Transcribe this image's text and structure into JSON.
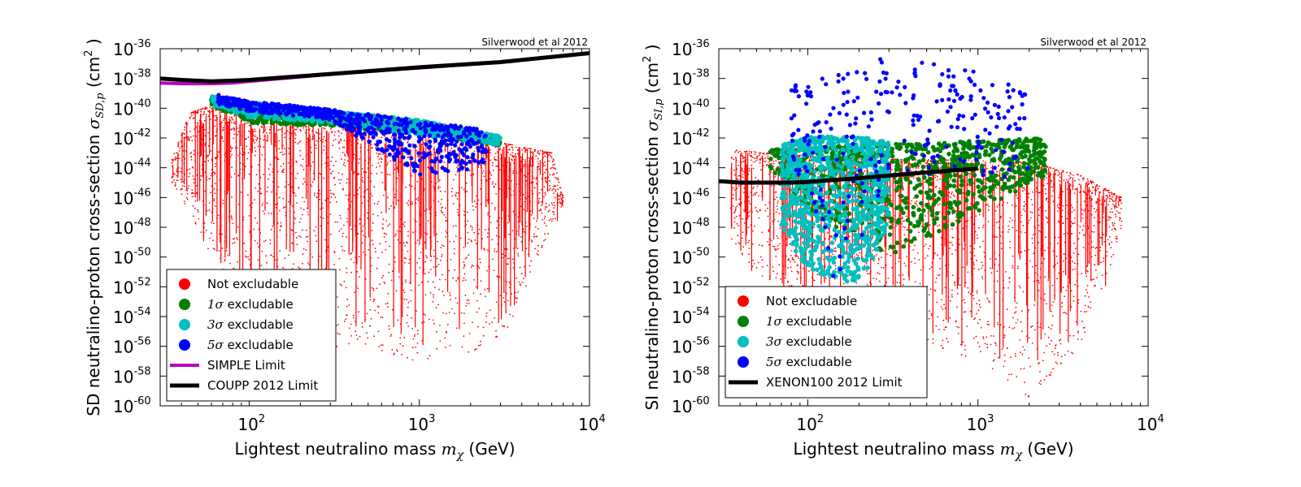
{
  "chart_data": [
    {
      "type": "scatter",
      "panel": "left",
      "credit": "Silverwood et al 2012",
      "xlabel_prefix": "Lightest neutralino mass ",
      "xlabel_symbol": "m",
      "xlabel_sub": "χ",
      "xlabel_suffix": " (GeV)",
      "ylabel_prefix": "SD neutralino-proton cross-section ",
      "ylabel_symbol": "σ",
      "ylabel_sub": "SD,p",
      "ylabel_units": " (cm",
      "ylabel_units_exp": "2",
      "ylabel_units_end": " )",
      "x_scale": "log",
      "y_scale": "log",
      "xlim": [
        30,
        10000
      ],
      "ylim": [
        1e-60,
        1e-36
      ],
      "x_ticks": [
        {
          "base": "10",
          "exp": "2",
          "value": 100
        },
        {
          "base": "10",
          "exp": "3",
          "value": 1000
        },
        {
          "base": "10",
          "exp": "4",
          "value": 10000
        }
      ],
      "y_ticks": [
        {
          "base": "10",
          "exp": "-36",
          "value": -36
        },
        {
          "base": "10",
          "exp": "-38",
          "value": -38
        },
        {
          "base": "10",
          "exp": "-40",
          "value": -40
        },
        {
          "base": "10",
          "exp": "-42",
          "value": -42
        },
        {
          "base": "10",
          "exp": "-44",
          "value": -44
        },
        {
          "base": "10",
          "exp": "-46",
          "value": -46
        },
        {
          "base": "10",
          "exp": "-48",
          "value": -48
        },
        {
          "base": "10",
          "exp": "-50",
          "value": -50
        },
        {
          "base": "10",
          "exp": "-52",
          "value": -52
        },
        {
          "base": "10",
          "exp": "-54",
          "value": -54
        },
        {
          "base": "10",
          "exp": "-56",
          "value": -56
        },
        {
          "base": "10",
          "exp": "-58",
          "value": -58
        },
        {
          "base": "10",
          "exp": "-60",
          "value": -60
        }
      ],
      "legend_position": "lower-left",
      "legend": [
        {
          "label": "Not excludable",
          "sigma": "",
          "kind": "marker",
          "color": "#ff0000"
        },
        {
          "label": " excludable",
          "sigma": "1σ",
          "kind": "marker",
          "color": "#008000"
        },
        {
          "label": " excludable",
          "sigma": "3σ",
          "kind": "marker",
          "color": "#00bfbf"
        },
        {
          "label": " excludable",
          "sigma": "5σ",
          "kind": "marker",
          "color": "#0000ff"
        },
        {
          "label": "SIMPLE Limit",
          "sigma": "",
          "kind": "line",
          "color": "#bf00bf"
        },
        {
          "label": "COUPP 2012 Limit",
          "sigma": "",
          "kind": "line",
          "color": "#000000"
        }
      ],
      "series": [
        {
          "name": "SIMPLE Limit",
          "kind": "line",
          "color": "#bf00bf",
          "x": [
            30,
            40,
            60,
            80,
            100,
            200,
            400,
            1000,
            3000,
            10000
          ],
          "y": [
            -38.3,
            -38.35,
            -38.35,
            -38.3,
            -38.2,
            -37.9,
            -37.6,
            -37.3,
            -36.9,
            -36.3
          ]
        },
        {
          "name": "COUPP 2012 Limit",
          "kind": "line",
          "color": "#000000",
          "x": [
            30,
            40,
            60,
            80,
            100,
            200,
            400,
            1000,
            3000,
            10000
          ],
          "y": [
            -38.0,
            -38.1,
            -38.2,
            -38.15,
            -38.1,
            -37.85,
            -37.6,
            -37.25,
            -36.9,
            -36.3
          ]
        }
      ],
      "point_clouds": [
        {
          "class": "Not excludable",
          "color": "#ff0000",
          "upper_edge_x": [
            35,
            45,
            60,
            100,
            300,
            1000,
            3000,
            6000,
            7000
          ],
          "upper_edge_y": [
            -43.5,
            -40.3,
            -39.8,
            -40.5,
            -41.0,
            -41.6,
            -42.3,
            -43.0,
            -46.0
          ],
          "lower_edge_y": [
            -45.0,
            -47.0,
            -50.0,
            -54.0,
            -56.0,
            -57.0,
            -56.0,
            -48.0,
            -46.5
          ]
        },
        {
          "class": "1σ excludable",
          "color": "#008000",
          "upper_edge_x": [
            60,
            100,
            300,
            1000,
            3000
          ],
          "upper_edge_y": [
            -39.4,
            -39.8,
            -40.3,
            -40.9,
            -42.2
          ],
          "lower_edge_y": [
            -39.8,
            -41.0,
            -41.2,
            -41.7,
            -42.5
          ]
        },
        {
          "class": "3σ excludable",
          "color": "#00bfbf",
          "upper_edge_x": [
            60,
            100,
            300,
            1000,
            3000
          ],
          "upper_edge_y": [
            -39.2,
            -39.6,
            -40.2,
            -40.8,
            -41.9
          ],
          "lower_edge_y": [
            -39.8,
            -40.6,
            -41.0,
            -41.8,
            -42.5
          ]
        },
        {
          "class": "5σ excludable",
          "color": "#0000ff",
          "upper_edge_x": [
            65,
            100,
            300,
            1000,
            2500
          ],
          "upper_edge_y": [
            -39.1,
            -39.5,
            -40.1,
            -40.8,
            -41.5
          ],
          "lower_edge_y": [
            -39.7,
            -40.2,
            -40.8,
            -44.5,
            -44.0
          ]
        }
      ]
    },
    {
      "type": "scatter",
      "panel": "right",
      "credit": "Silverwood et al 2012",
      "xlabel_prefix": "Lightest neutralino mass ",
      "xlabel_symbol": "m",
      "xlabel_sub": "χ",
      "xlabel_suffix": " (GeV)",
      "ylabel_prefix": "SI neutralino-proton cross-section ",
      "ylabel_symbol": "σ",
      "ylabel_sub": "SI,p",
      "ylabel_units": " (cm",
      "ylabel_units_exp": "2",
      "ylabel_units_end": " )",
      "x_scale": "log",
      "y_scale": "log",
      "xlim": [
        30,
        10000
      ],
      "ylim": [
        1e-60,
        1e-36
      ],
      "x_ticks": [
        {
          "base": "10",
          "exp": "2",
          "value": 100
        },
        {
          "base": "10",
          "exp": "3",
          "value": 1000
        },
        {
          "base": "10",
          "exp": "4",
          "value": 10000
        }
      ],
      "y_ticks": [
        {
          "base": "10",
          "exp": "-36",
          "value": -36
        },
        {
          "base": "10",
          "exp": "-38",
          "value": -38
        },
        {
          "base": "10",
          "exp": "-40",
          "value": -40
        },
        {
          "base": "10",
          "exp": "-42",
          "value": -42
        },
        {
          "base": "10",
          "exp": "-44",
          "value": -44
        },
        {
          "base": "10",
          "exp": "-46",
          "value": -46
        },
        {
          "base": "10",
          "exp": "-48",
          "value": -48
        },
        {
          "base": "10",
          "exp": "-50",
          "value": -50
        },
        {
          "base": "10",
          "exp": "-52",
          "value": -52
        },
        {
          "base": "10",
          "exp": "-54",
          "value": -54
        },
        {
          "base": "10",
          "exp": "-56",
          "value": -56
        },
        {
          "base": "10",
          "exp": "-58",
          "value": -58
        },
        {
          "base": "10",
          "exp": "-60",
          "value": -60
        }
      ],
      "legend_position": "lower-left",
      "legend": [
        {
          "label": "Not excludable",
          "sigma": "",
          "kind": "marker",
          "color": "#ff0000"
        },
        {
          "label": " excludable",
          "sigma": "1σ",
          "kind": "marker",
          "color": "#008000"
        },
        {
          "label": " excludable",
          "sigma": "3σ",
          "kind": "marker",
          "color": "#00bfbf"
        },
        {
          "label": " excludable",
          "sigma": "5σ",
          "kind": "marker",
          "color": "#0000ff"
        },
        {
          "label": "XENON100 2012 Limit",
          "sigma": "",
          "kind": "line",
          "color": "#000000"
        }
      ],
      "series": [
        {
          "name": "XENON100 2012 Limit",
          "kind": "line",
          "color": "#000000",
          "x": [
            30,
            40,
            60,
            80,
            100,
            200,
            400,
            1000
          ],
          "y": [
            -44.9,
            -45.0,
            -45.0,
            -45.0,
            -44.95,
            -44.7,
            -44.4,
            -44.05
          ]
        }
      ],
      "point_clouds": [
        {
          "class": "Not excludable",
          "color": "#ff0000",
          "upper_edge_x": [
            35,
            60,
            100,
            300,
            1000,
            2000,
            4000,
            7000
          ],
          "upper_edge_y": [
            -42.8,
            -43.0,
            -43.2,
            -43.4,
            -43.5,
            -43.6,
            -44.5,
            -46.0
          ],
          "lower_edge_y": [
            -49.0,
            -52.0,
            -54.0,
            -55.0,
            -57.0,
            -59.5,
            -56.0,
            -48.5
          ]
        },
        {
          "class": "1σ excludable",
          "color": "#008000",
          "upper_edge_x": [
            60,
            100,
            300,
            1000,
            2500
          ],
          "upper_edge_y": [
            -42.8,
            -42.6,
            -42.4,
            -42.2,
            -42.0
          ],
          "lower_edge_y": [
            -44.0,
            -47.0,
            -50.0,
            -47.0,
            -44.5
          ]
        },
        {
          "class": "3σ excludable",
          "color": "#00bfbf",
          "upper_edge_x": [
            70,
            100,
            200,
            300
          ],
          "upper_edge_y": [
            -42.5,
            -41.9,
            -41.9,
            -42.3
          ],
          "lower_edge_y": [
            -48.0,
            -51.0,
            -52.0,
            -48.0
          ]
        },
        {
          "class": "5σ excludable",
          "color": "#0000ff",
          "upper_edge_x": [
            80,
            150,
            300,
            1000,
            2000
          ],
          "upper_edge_y": [
            -38.5,
            -37.5,
            -36.5,
            -37.5,
            -39.0
          ],
          "lower_edge_y": [
            -44.0,
            -52.5,
            -44.5,
            -44.5,
            -45.0
          ]
        }
      ]
    }
  ]
}
